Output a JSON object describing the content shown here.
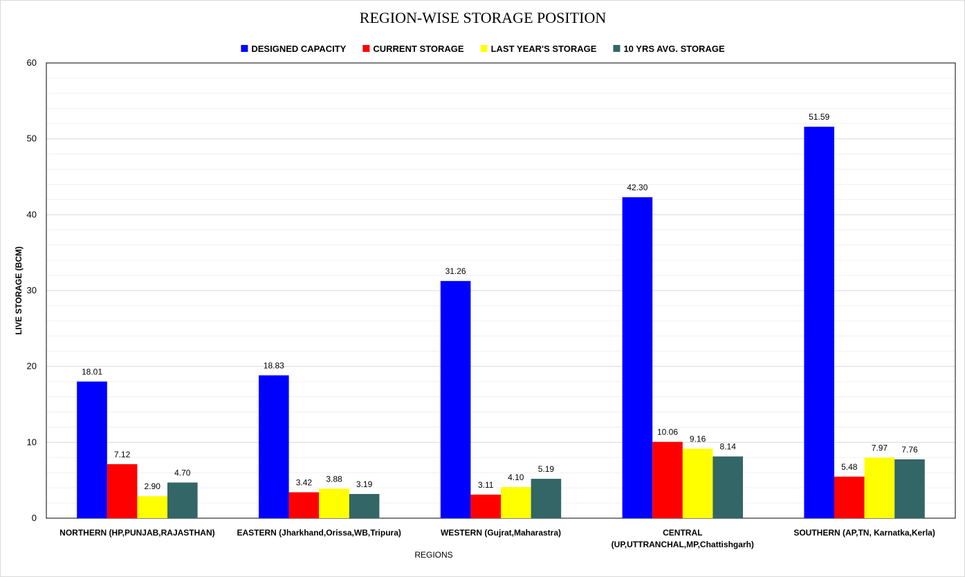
{
  "chart_data": {
    "type": "bar",
    "title": "REGION-WISE STORAGE POSITION",
    "xlabel": "REGIONS",
    "ylabel": "LIVE STORAGE (BCM)",
    "ylim": [
      0,
      60
    ],
    "yticks": [
      0,
      10,
      20,
      30,
      40,
      50,
      60
    ],
    "grid": true,
    "legend_position": "top",
    "categories": [
      [
        "NORTHERN (HP,PUNJAB,RAJASTHAN)"
      ],
      [
        "EASTERN (Jharkhand,Orissa,WB,Tripura)"
      ],
      [
        "WESTERN (Gujrat,Maharastra)"
      ],
      [
        "CENTRAL",
        "(UP,UTTRANCHAL,MP,Chattishgarh)"
      ],
      [
        "SOUTHERN (AP,TN, Karnatka,Kerla)"
      ]
    ],
    "series": [
      {
        "name": "DESIGNED CAPACITY",
        "color": "#0000FF",
        "values": [
          18.01,
          18.83,
          31.26,
          42.3,
          51.59
        ],
        "labels": [
          "18.01",
          "18.83",
          "31.26",
          "42.30",
          "51.59"
        ]
      },
      {
        "name": "CURRENT STORAGE",
        "color": "#FF0000",
        "values": [
          7.12,
          3.42,
          3.11,
          10.06,
          5.48
        ],
        "labels": [
          "7.12",
          "3.42",
          "3.11",
          "10.06",
          "5.48"
        ]
      },
      {
        "name": "LAST YEAR'S STORAGE",
        "color": "#FFFF00",
        "values": [
          2.9,
          3.88,
          4.1,
          9.16,
          7.97
        ],
        "labels": [
          "2.90",
          "3.88",
          "4.10",
          "9.16",
          "7.97"
        ]
      },
      {
        "name": "10 YRS AVG. STORAGE",
        "color": "#336666",
        "values": [
          4.7,
          3.19,
          5.19,
          8.14,
          7.76
        ],
        "labels": [
          "4.70",
          "3.19",
          "5.19",
          "8.14",
          "7.76"
        ]
      }
    ]
  }
}
